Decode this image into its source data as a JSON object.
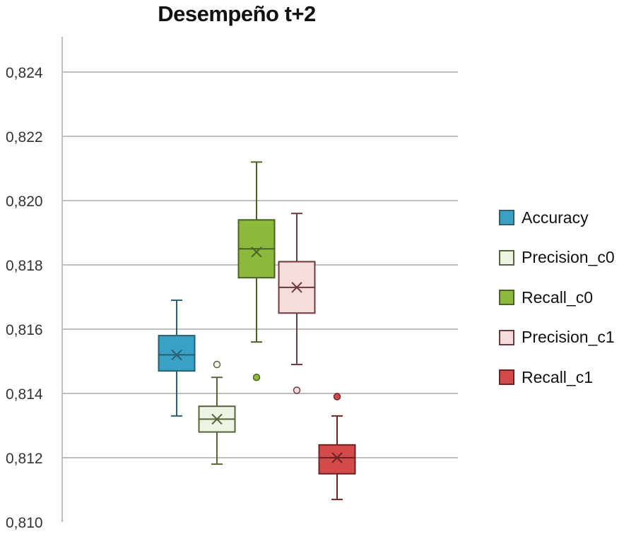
{
  "chart_data": {
    "type": "box",
    "title": "Desempeño t+2",
    "xlabel": "",
    "ylabel": "",
    "ylim": [
      0.81,
      0.8245
    ],
    "yticks": [
      0.81,
      0.812,
      0.814,
      0.816,
      0.818,
      0.82,
      0.822,
      0.824
    ],
    "ytick_labels": [
      "0,810",
      "0,812",
      "0,814",
      "0,816",
      "0,818",
      "0,820",
      "0,822",
      "0,824"
    ],
    "grid": true,
    "legend_position": "right",
    "series": [
      {
        "name": "Accuracy",
        "min": 0.8133,
        "q1": 0.8147,
        "median": 0.8152,
        "q3": 0.8158,
        "max": 0.8169,
        "mean": 0.8152,
        "outliers": [],
        "fill": "#3aa0c4",
        "stroke": "#2a5f72"
      },
      {
        "name": "Precision_c0",
        "min": 0.8118,
        "q1": 0.8128,
        "median": 0.8132,
        "q3": 0.8136,
        "max": 0.8145,
        "mean": 0.8132,
        "outliers": [
          0.8149
        ],
        "fill": "#eef4e2",
        "stroke": "#55643a"
      },
      {
        "name": "Recall_c0",
        "min": 0.8156,
        "q1": 0.8176,
        "median": 0.8185,
        "q3": 0.8194,
        "max": 0.8212,
        "mean": 0.8184,
        "outliers": [
          0.8145
        ],
        "fill": "#8cb83c",
        "stroke": "#4a6324"
      },
      {
        "name": "Precision_c1",
        "min": 0.8149,
        "q1": 0.8165,
        "median": 0.8173,
        "q3": 0.8181,
        "max": 0.8196,
        "mean": 0.8173,
        "outliers": [
          0.8141
        ],
        "fill": "#f6dcdc",
        "stroke": "#6b3b3b"
      },
      {
        "name": "Recall_c1",
        "min": 0.8107,
        "q1": 0.8115,
        "median": 0.812,
        "q3": 0.8124,
        "max": 0.8133,
        "mean": 0.812,
        "outliers": [
          0.8139
        ],
        "fill": "#d24a4a",
        "stroke": "#6e2222"
      }
    ]
  }
}
